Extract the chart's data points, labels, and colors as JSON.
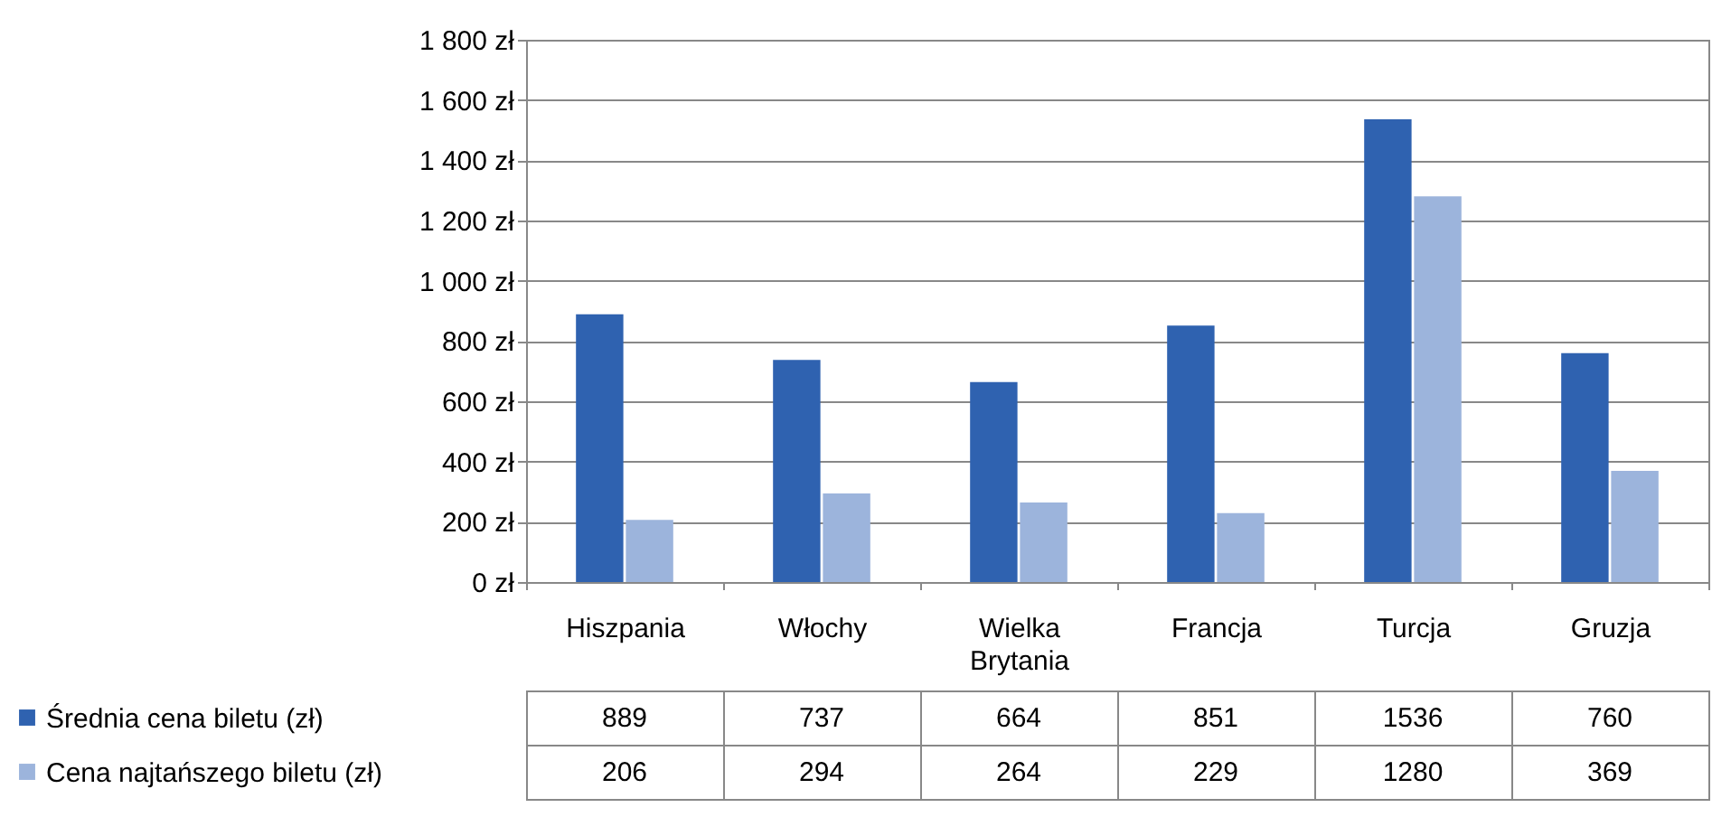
{
  "chart_data": {
    "type": "bar",
    "categories": [
      "Hiszpania",
      "Włochy",
      "Wielka Brytania",
      "Francja",
      "Turcja",
      "Gruzja"
    ],
    "series": [
      {
        "name": "Średnia cena biletu (zł)",
        "color": "#2f62b0",
        "values": [
          889,
          737,
          664,
          851,
          1536,
          760
        ]
      },
      {
        "name": "Cena najtańszego biletu (zł)",
        "color": "#9cb4dc",
        "values": [
          206,
          294,
          264,
          229,
          1280,
          369
        ]
      }
    ],
    "ylim": [
      0,
      1800
    ],
    "yticks": [
      {
        "value": 0,
        "label": "0 zł"
      },
      {
        "value": 200,
        "label": "200 zł"
      },
      {
        "value": 400,
        "label": "400 zł"
      },
      {
        "value": 600,
        "label": "600 zł"
      },
      {
        "value": 800,
        "label": "800 zł"
      },
      {
        "value": 1000,
        "label": "1 000 zł"
      },
      {
        "value": 1200,
        "label": "1 200 zł"
      },
      {
        "value": 1400,
        "label": "1 400 zł"
      },
      {
        "value": 1600,
        "label": "1 600 zł"
      },
      {
        "value": 1800,
        "label": "1 800 zł"
      }
    ],
    "grid": "y",
    "legend": "bottom left",
    "data_labels": true
  }
}
